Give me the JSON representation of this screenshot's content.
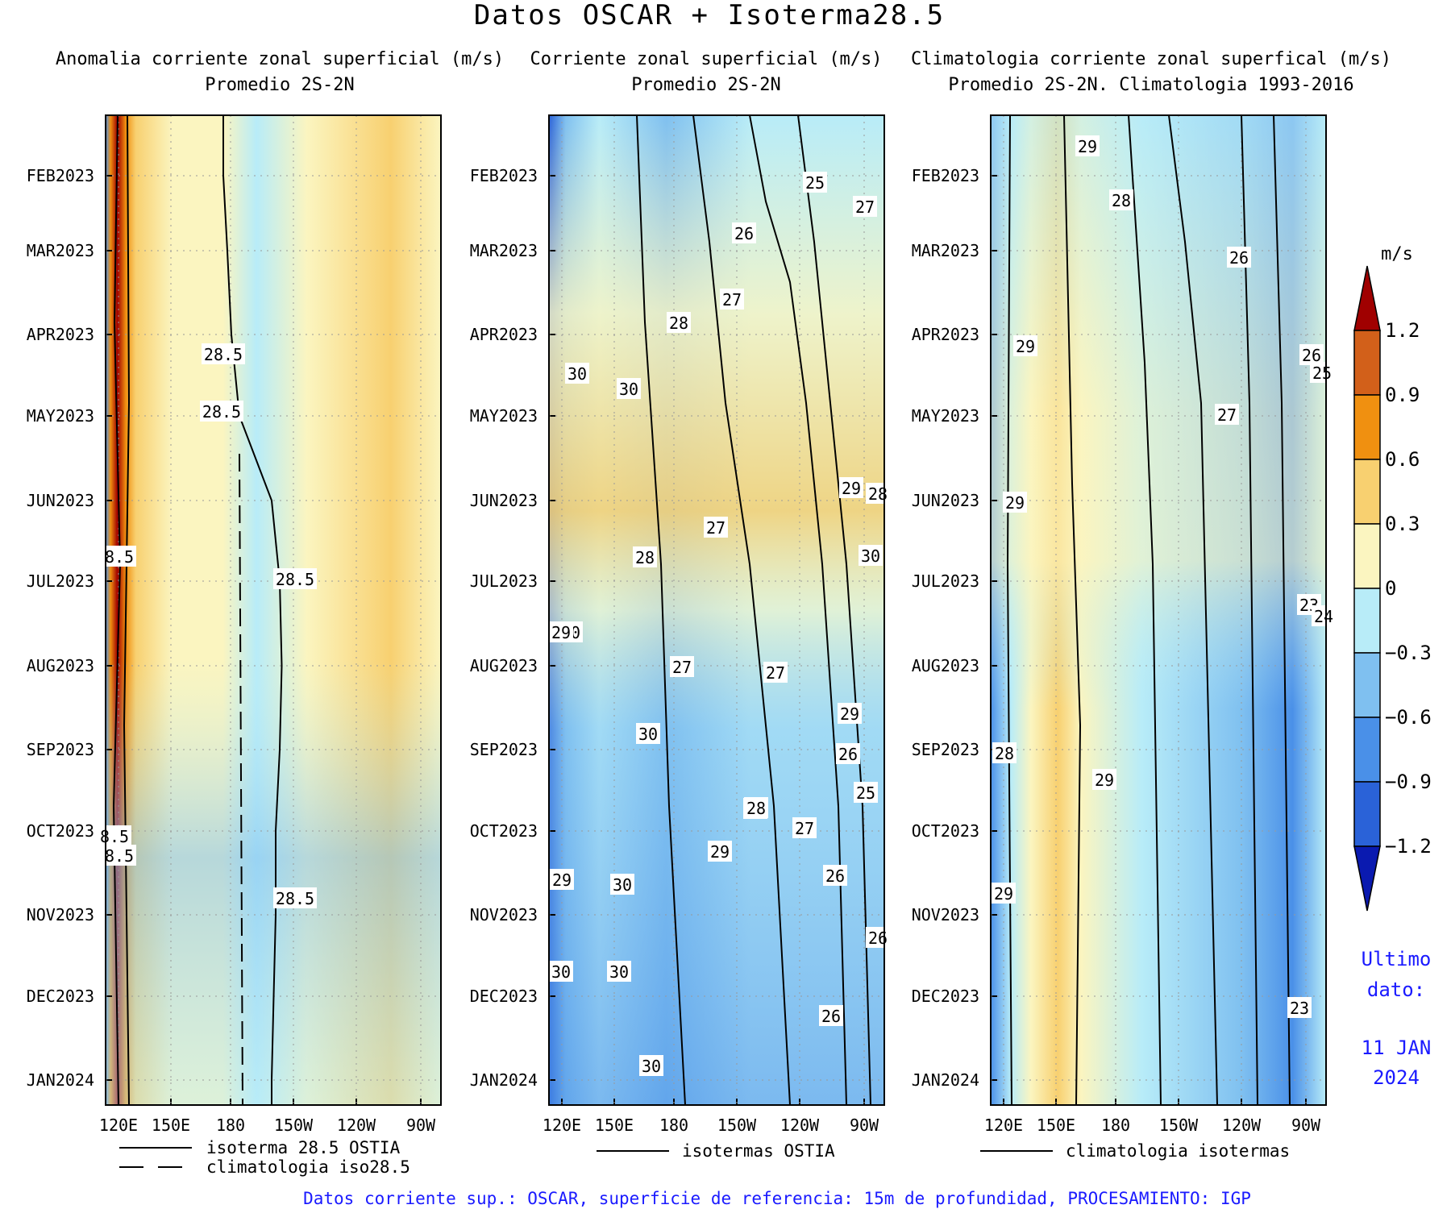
{
  "title": "Datos OSCAR + Isoterma28.5",
  "footer": "Datos corriente sup.: OSCAR, superficie de referencia: 15m de profundidad, PROCESAMIENTO: IGP",
  "colorbar": {
    "unit": "m/s",
    "levels": [
      "1.2",
      "0.9",
      "0.6",
      "0.3",
      "0",
      "−0.3",
      "−0.6",
      "−0.9",
      "−1.2"
    ],
    "colors": [
      "#a00000",
      "#d2601a",
      "#f09010",
      "#f8d070",
      "#fbf5c0",
      "#b8ecf8",
      "#7fc0f0",
      "#4a90e8",
      "#2a62d8",
      "#0a1ab0"
    ]
  },
  "last_data": {
    "label1": "Ultimo",
    "label2": "dato:",
    "date1": "11 JAN",
    "date2": "2024"
  },
  "chart_data": [
    {
      "type": "heatmap",
      "title": "Anomalia corriente zonal superficial (m/s)",
      "subtitle": "Promedio 2S-2N",
      "x_ticks": [
        "120E",
        "150E",
        "180",
        "150W",
        "120W",
        "90W"
      ],
      "y_ticks": [
        "FEB2023",
        "MAR2023",
        "APR2023",
        "MAY2023",
        "JUN2023",
        "JUL2023",
        "AUG2023",
        "SEP2023",
        "OCT2023",
        "NOV2023",
        "DEC2023",
        "JAN2024"
      ],
      "legend": [
        "isoterma 28.5 OSTIA",
        "climatologia iso28.5"
      ],
      "contour_labels": [
        "28.5",
        "28.5",
        "8.5",
        "28.5",
        "8.5",
        "8.5",
        "28.5"
      ],
      "isotherm_28_5_longitude_deg": {
        "months": [
          "FEB2023",
          "MAR2023",
          "APR2023",
          "MAY2023",
          "JUN2023",
          "JUL2023",
          "AUG2023",
          "SEP2023",
          "OCT2023",
          "NOV2023",
          "DEC2023",
          "JAN2024"
        ],
        "values": [
          172,
          174,
          176,
          180,
          196,
          200,
          201,
          200,
          198,
          198,
          197,
          196
        ]
      },
      "climatology_iso28_5_longitude_deg": 180
    },
    {
      "type": "heatmap",
      "title": "Corriente zonal superficial (m/s)",
      "subtitle": "Promedio 2S-2N",
      "x_ticks": [
        "120E",
        "150E",
        "180",
        "150W",
        "120W",
        "90W"
      ],
      "y_ticks": [
        "FEB2023",
        "MAR2023",
        "APR2023",
        "MAY2023",
        "JUN2023",
        "JUL2023",
        "AUG2023",
        "SEP2023",
        "OCT2023",
        "NOV2023",
        "DEC2023",
        "JAN2024"
      ],
      "legend": [
        "isotermas OSTIA"
      ],
      "contour_labels": [
        "25",
        "27",
        "26",
        "27",
        "28",
        "30",
        "30",
        "28",
        "27",
        "29",
        "28",
        "30",
        "30",
        "27",
        "29",
        "27",
        "29",
        "30",
        "26",
        "30",
        "26",
        "28",
        "27",
        "25",
        "29",
        "29",
        "30",
        "26",
        "30",
        "30",
        "26",
        "30"
      ]
    },
    {
      "type": "heatmap",
      "title": "Climatologia corriente zonal superfical (m/s)",
      "subtitle": "Promedio 2S-2N. Climatologia 1993-2016",
      "x_ticks": [
        "120E",
        "150E",
        "180",
        "150W",
        "120W",
        "90W"
      ],
      "y_ticks": [
        "FEB2023",
        "MAR2023",
        "APR2023",
        "MAY2023",
        "JUN2023",
        "JUL2023",
        "AUG2023",
        "SEP2023",
        "OCT2023",
        "NOV2023",
        "DEC2023",
        "JAN2024"
      ],
      "legend": [
        "climatologia isotermas"
      ],
      "contour_labels": [
        "29",
        "28",
        "26",
        "29",
        "26",
        "25",
        "27",
        "29",
        "23",
        "24",
        "28",
        "29",
        "29",
        "23"
      ]
    }
  ]
}
